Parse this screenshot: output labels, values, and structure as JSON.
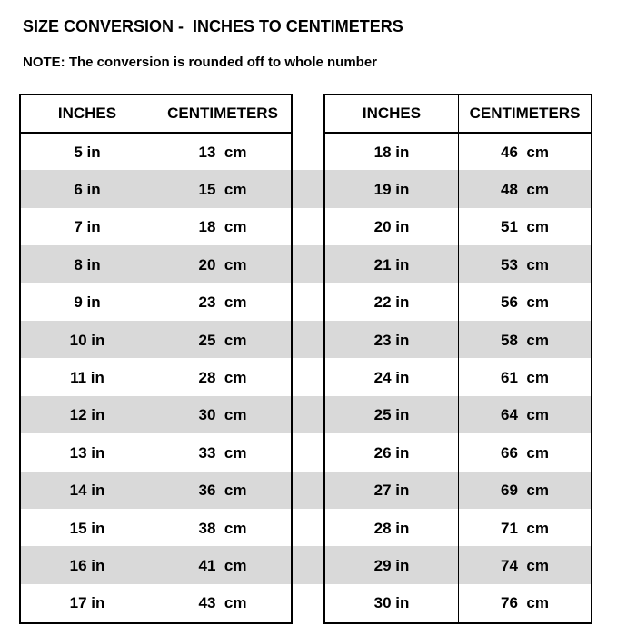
{
  "title": "SIZE CONVERSION -  INCHES TO CENTIMETERS",
  "note": "NOTE: The conversion is rounded off to whole number",
  "stripe_color": "#d9d9d9",
  "tables": [
    {
      "headers": [
        "INCHES",
        "CENTIMETERS"
      ],
      "rows": [
        [
          "5 in",
          "13  cm"
        ],
        [
          "6 in",
          "15  cm"
        ],
        [
          "7 in",
          "18  cm"
        ],
        [
          "8 in",
          "20  cm"
        ],
        [
          "9 in",
          "23  cm"
        ],
        [
          "10 in",
          "25  cm"
        ],
        [
          "11 in",
          "28  cm"
        ],
        [
          "12 in",
          "30  cm"
        ],
        [
          "13 in",
          "33  cm"
        ],
        [
          "14 in",
          "36  cm"
        ],
        [
          "15 in",
          "38  cm"
        ],
        [
          "16 in",
          "41  cm"
        ],
        [
          "17 in",
          "43  cm"
        ]
      ]
    },
    {
      "headers": [
        "INCHES",
        "CENTIMETERS"
      ],
      "rows": [
        [
          "18 in",
          "46  cm"
        ],
        [
          "19 in",
          "48  cm"
        ],
        [
          "20 in",
          "51  cm"
        ],
        [
          "21 in",
          "53  cm"
        ],
        [
          "22 in",
          "56  cm"
        ],
        [
          "23 in",
          "58  cm"
        ],
        [
          "24 in",
          "61  cm"
        ],
        [
          "25 in",
          "64  cm"
        ],
        [
          "26 in",
          "66  cm"
        ],
        [
          "27 in",
          "69  cm"
        ],
        [
          "28 in",
          "71  cm"
        ],
        [
          "29 in",
          "74  cm"
        ],
        [
          "30 in",
          "76  cm"
        ]
      ]
    }
  ]
}
